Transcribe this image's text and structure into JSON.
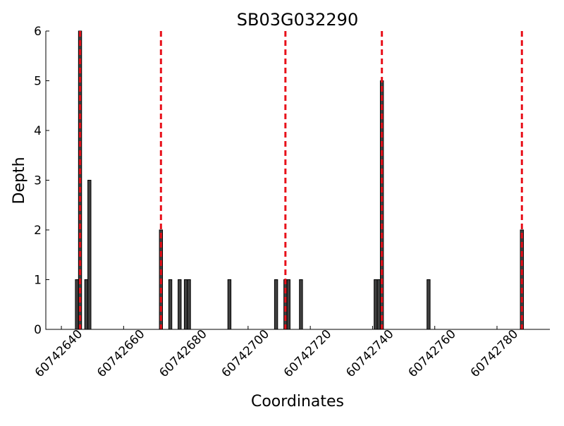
{
  "chart_data": {
    "type": "bar",
    "title": "SB03G032290",
    "xlabel": "Coordinates",
    "ylabel": "Depth",
    "x": [
      60742645,
      60742646,
      60742648,
      60742649,
      60742672,
      60742675,
      60742678,
      60742680,
      60742681,
      60742694,
      60742709,
      60742712,
      60742713,
      60742717,
      60742741,
      60742742,
      60742743,
      60742758,
      60742788
    ],
    "values": [
      1,
      6,
      1,
      3,
      2,
      1,
      1,
      1,
      1,
      1,
      1,
      1,
      1,
      1,
      1,
      1,
      5,
      1,
      2
    ],
    "color": "#404040",
    "vlines": [
      60742646,
      60742672,
      60742712,
      60742743,
      60742788
    ],
    "vline_color": "#e8101a",
    "xlim": [
      60742635,
      60742797
    ],
    "xticks": [
      60742640,
      60742660,
      60742680,
      60742700,
      60742720,
      60742740,
      60742760,
      60742780
    ],
    "ylim": [
      0,
      6
    ],
    "yticks": [
      0,
      1,
      2,
      3,
      4,
      5,
      6
    ]
  }
}
